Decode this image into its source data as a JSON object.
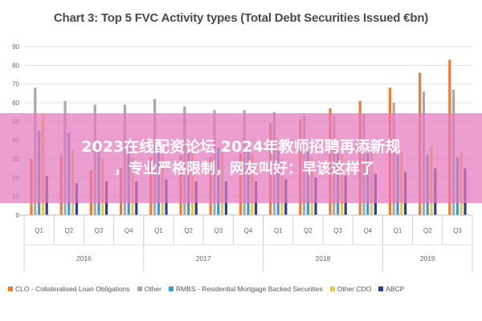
{
  "chart_data": {
    "type": "bar",
    "title": "Chart 3: Top 5 FVC Activity types (Total Debt Securities Issued €bn)",
    "categories": [
      "Q1",
      "Q2",
      "Q3",
      "Q4",
      "Q1",
      "Q2",
      "Q3",
      "Q4",
      "Q1",
      "Q2",
      "Q3",
      "Q4",
      "Q1",
      "Q2",
      "Q3"
    ],
    "year_groups": [
      {
        "label": "2016",
        "count": 4
      },
      {
        "label": "2017",
        "count": 4
      },
      {
        "label": "2018",
        "count": 4
      },
      {
        "label": "2019",
        "count": 3
      }
    ],
    "ylim": [
      0,
      90
    ],
    "yticks": [
      0,
      10,
      20,
      30,
      40,
      50,
      60,
      70,
      80,
      90
    ],
    "grid": true,
    "legend_position": "bottom",
    "series": [
      {
        "name": "CLO - Collateralised Loan Obligations",
        "color": "#f07a2d",
        "values": [
          30,
          32,
          24,
          25,
          31,
          32,
          31,
          33,
          49,
          51,
          57,
          61,
          68,
          76,
          83
        ]
      },
      {
        "name": "Other",
        "color": "#a9a9a9",
        "values": [
          68,
          61,
          59,
          59,
          62,
          58,
          56,
          56,
          55,
          53,
          53,
          54,
          60,
          66,
          67
        ]
      },
      {
        "name": "RMBS - Residential Mortgage Backed Securities",
        "color": "#3a9bd0",
        "values": [
          45,
          44,
          38,
          40,
          40,
          38,
          36,
          37,
          35,
          34,
          33,
          33,
          32,
          32,
          31
        ]
      },
      {
        "name": "Other CDO",
        "color": "#f5c242",
        "values": [
          54,
          35,
          30,
          31,
          32,
          33,
          34,
          33,
          30,
          31,
          33,
          34,
          34,
          37,
          34
        ]
      },
      {
        "name": "ABCP",
        "color": "#2a3f8f",
        "values": [
          21,
          17,
          18,
          18,
          19,
          18,
          18,
          18,
          19,
          20,
          21,
          22,
          23,
          25,
          25
        ]
      }
    ]
  },
  "overlay": {
    "line1": "2023在线配资论坛 2024年教师招聘再添新规",
    "line2": "，专业严格限制，网友叫好：早该这样了"
  }
}
